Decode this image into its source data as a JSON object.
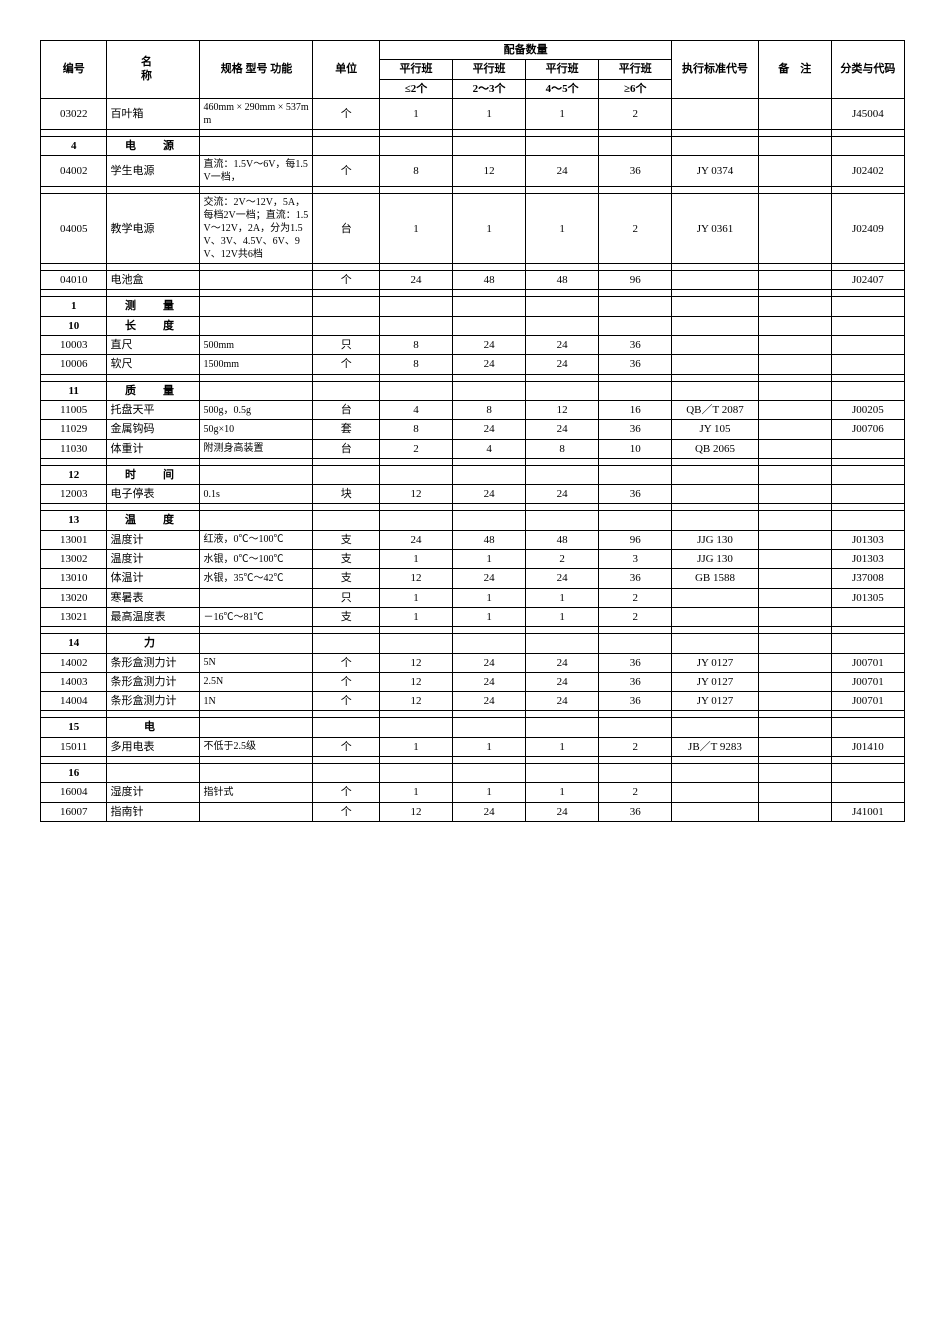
{
  "headers": {
    "id": "编号",
    "name": "名　　称",
    "spec": "规格 型号 功能",
    "unit": "单位",
    "qty_group": "配备数量",
    "parallel": "平行班",
    "q1": "≤2个",
    "q2": "2～3个",
    "q3": "4～5个",
    "q4": "≥6个",
    "std": "执行标准代号",
    "remark": "备　注",
    "code": "分类与代码"
  },
  "rows": [
    {
      "type": "data",
      "id": "03022",
      "name": "百叶箱",
      "spec": "460mm × 290mm × 537mm",
      "unit": "个",
      "q1": "1",
      "q2": "1",
      "q3": "1",
      "q4": "2",
      "std": "",
      "remark": "",
      "code": "J45004"
    },
    {
      "type": "spacer"
    },
    {
      "type": "section",
      "id": "4",
      "name": "电　源"
    },
    {
      "type": "data",
      "id": "04002",
      "name": "学生电源",
      "spec": "直流：1.5V～6V，每1.5V一档，",
      "unit": "个",
      "q1": "8",
      "q2": "12",
      "q3": "24",
      "q4": "36",
      "std": "JY 0374",
      "remark": "",
      "code": "J02402"
    },
    {
      "type": "spacer"
    },
    {
      "type": "data",
      "id": "04005",
      "name": "教学电源",
      "spec": "交流：2V～12V，5A，每档2V一档；直流：1.5V～12V，2A，分为1.5V、3V、4.5V、6V、9V、12V共6档",
      "unit": "台",
      "q1": "1",
      "q2": "1",
      "q3": "1",
      "q4": "2",
      "std": "JY 0361",
      "remark": "",
      "code": "J02409"
    },
    {
      "type": "spacer"
    },
    {
      "type": "data",
      "id": "04010",
      "name": "电池盒",
      "spec": "",
      "unit": "个",
      "q1": "24",
      "q2": "48",
      "q3": "48",
      "q4": "96",
      "std": "",
      "remark": "",
      "code": "J02407"
    },
    {
      "type": "spacer"
    },
    {
      "type": "section",
      "id": "1",
      "name": "测　量"
    },
    {
      "type": "section",
      "id": "10",
      "name": "长　度"
    },
    {
      "type": "data",
      "id": "10003",
      "name": "直尺",
      "spec": "500mm",
      "unit": "只",
      "q1": "8",
      "q2": "24",
      "q3": "24",
      "q4": "36",
      "std": "",
      "remark": "",
      "code": ""
    },
    {
      "type": "data",
      "id": "10006",
      "name": "软尺",
      "spec": "1500mm",
      "unit": "个",
      "q1": "8",
      "q2": "24",
      "q3": "24",
      "q4": "36",
      "std": "",
      "remark": "",
      "code": ""
    },
    {
      "type": "spacer"
    },
    {
      "type": "section",
      "id": "11",
      "name": "质　量"
    },
    {
      "type": "data",
      "id": "11005",
      "name": "托盘天平",
      "spec": "500g，0.5g",
      "unit": "台",
      "q1": "4",
      "q2": "8",
      "q3": "12",
      "q4": "16",
      "std": "QB／T 2087",
      "remark": "",
      "code": "J00205"
    },
    {
      "type": "data",
      "id": "11029",
      "name": "金属钩码",
      "spec": "50g×10",
      "unit": "套",
      "q1": "8",
      "q2": "24",
      "q3": "24",
      "q4": "36",
      "std": "JY 105",
      "remark": "",
      "code": "J00706"
    },
    {
      "type": "data",
      "id": "11030",
      "name": "体重计",
      "spec": "附测身高装置",
      "unit": "台",
      "q1": "2",
      "q2": "4",
      "q3": "8",
      "q4": "10",
      "std": "QB 2065",
      "remark": "",
      "code": ""
    },
    {
      "type": "spacer"
    },
    {
      "type": "section",
      "id": "12",
      "name": "时　间"
    },
    {
      "type": "data",
      "id": "12003",
      "name": "电子停表",
      "spec": "0.1s",
      "unit": "块",
      "q1": "12",
      "q2": "24",
      "q3": "24",
      "q4": "36",
      "std": "",
      "remark": "",
      "code": ""
    },
    {
      "type": "spacer"
    },
    {
      "type": "section",
      "id": "13",
      "name": "温　度"
    },
    {
      "type": "data",
      "id": "13001",
      "name": "温度计",
      "spec": "红液，0℃～100℃",
      "unit": "支",
      "q1": "24",
      "q2": "48",
      "q3": "48",
      "q4": "96",
      "std": "JJG 130",
      "remark": "",
      "code": "J01303"
    },
    {
      "type": "data",
      "id": "13002",
      "name": "温度计",
      "spec": "水银，0℃～100℃",
      "unit": "支",
      "q1": "1",
      "q2": "1",
      "q3": "2",
      "q4": "3",
      "std": "JJG 130",
      "remark": "",
      "code": "J01303"
    },
    {
      "type": "data",
      "id": "13010",
      "name": "体温计",
      "spec": "水银，35℃～42℃",
      "unit": "支",
      "q1": "12",
      "q2": "24",
      "q3": "24",
      "q4": "36",
      "std": "GB 1588",
      "remark": "",
      "code": "J37008"
    },
    {
      "type": "data",
      "id": "13020",
      "name": "寒暑表",
      "spec": "",
      "unit": "只",
      "q1": "1",
      "q2": "1",
      "q3": "1",
      "q4": "2",
      "std": "",
      "remark": "",
      "code": "J01305"
    },
    {
      "type": "data",
      "id": "13021",
      "name": "最高温度表",
      "spec": "－16℃～81℃",
      "unit": "支",
      "q1": "1",
      "q2": "1",
      "q3": "1",
      "q4": "2",
      "std": "",
      "remark": "",
      "code": ""
    },
    {
      "type": "spacer"
    },
    {
      "type": "section",
      "id": "14",
      "name": "力"
    },
    {
      "type": "data",
      "id": "14002",
      "name": "条形盒测力计",
      "spec": "5N",
      "unit": "个",
      "q1": "12",
      "q2": "24",
      "q3": "24",
      "q4": "36",
      "std": "JY 0127",
      "remark": "",
      "code": "J00701"
    },
    {
      "type": "data",
      "id": "14003",
      "name": "条形盒测力计",
      "spec": "2.5N",
      "unit": "个",
      "q1": "12",
      "q2": "24",
      "q3": "24",
      "q4": "36",
      "std": "JY 0127",
      "remark": "",
      "code": "J00701"
    },
    {
      "type": "data",
      "id": "14004",
      "name": "条形盒测力计",
      "spec": "1N",
      "unit": "个",
      "q1": "12",
      "q2": "24",
      "q3": "24",
      "q4": "36",
      "std": "JY 0127",
      "remark": "",
      "code": "J00701"
    },
    {
      "type": "spacer"
    },
    {
      "type": "section",
      "id": "15",
      "name": "电"
    },
    {
      "type": "data",
      "id": "15011",
      "name": "多用电表",
      "spec": "不低于2.5级",
      "unit": "个",
      "q1": "1",
      "q2": "1",
      "q3": "1",
      "q4": "2",
      "std": "JB／T 9283",
      "remark": "",
      "code": "J01410"
    },
    {
      "type": "spacer"
    },
    {
      "type": "section",
      "id": "16",
      "name": ""
    },
    {
      "type": "data",
      "id": "16004",
      "name": "湿度计",
      "spec": "指针式",
      "unit": "个",
      "q1": "1",
      "q2": "1",
      "q3": "1",
      "q4": "2",
      "std": "",
      "remark": "",
      "code": ""
    },
    {
      "type": "data",
      "id": "16007",
      "name": "指南针",
      "spec": "",
      "unit": "个",
      "q1": "12",
      "q2": "24",
      "q3": "24",
      "q4": "36",
      "std": "",
      "remark": "",
      "code": "J41001"
    }
  ]
}
